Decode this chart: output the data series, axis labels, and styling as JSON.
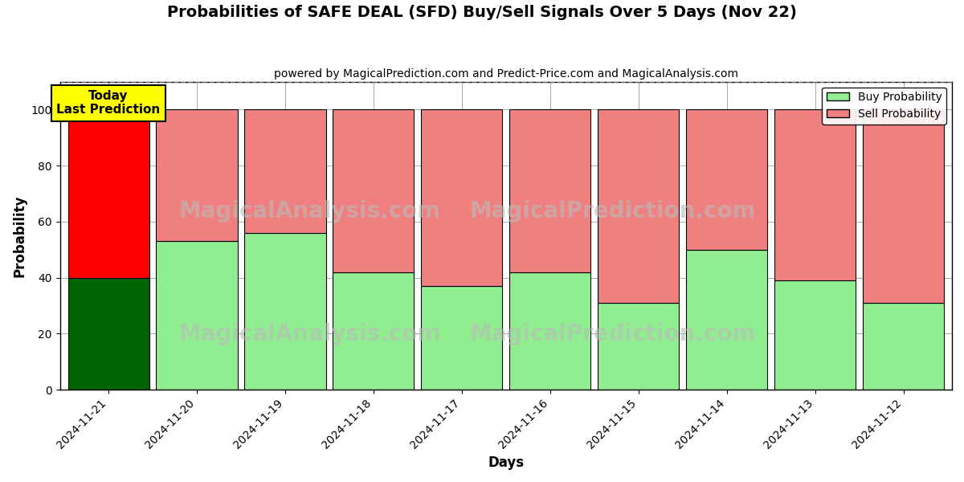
{
  "title": "Probabilities of SAFE DEAL (SFD) Buy/Sell Signals Over 5 Days (Nov 22)",
  "subtitle": "powered by MagicalPrediction.com and Predict-Price.com and MagicalAnalysis.com",
  "xlabel": "Days",
  "ylabel": "Probability",
  "dates": [
    "2024-11-21",
    "2024-11-20",
    "2024-11-19",
    "2024-11-18",
    "2024-11-17",
    "2024-11-16",
    "2024-11-15",
    "2024-11-14",
    "2024-11-13",
    "2024-11-12"
  ],
  "buy_values": [
    40,
    53,
    56,
    42,
    37,
    42,
    31,
    50,
    39,
    31
  ],
  "sell_values": [
    60,
    47,
    44,
    58,
    63,
    58,
    69,
    50,
    61,
    69
  ],
  "buy_color_today": "#006400",
  "sell_color_today": "#ff0000",
  "buy_color_rest": "#90EE90",
  "sell_color_rest": "#F08080",
  "bar_edgecolor": "#000000",
  "bar_linewidth": 0.8,
  "today_label_bg": "#ffff00",
  "today_label_text": "Today\nLast Prediction",
  "ylim": [
    0,
    110
  ],
  "yticks": [
    0,
    20,
    40,
    60,
    80,
    100
  ],
  "dashed_line_y": 110,
  "watermark_color": "#bbbbbb",
  "watermark_fontsize": 20,
  "grid_color": "#aaaaaa",
  "background_color": "#ffffff",
  "title_fontsize": 14,
  "subtitle_fontsize": 10,
  "axis_label_fontsize": 12,
  "tick_label_fontsize": 10,
  "legend_fontsize": 10
}
